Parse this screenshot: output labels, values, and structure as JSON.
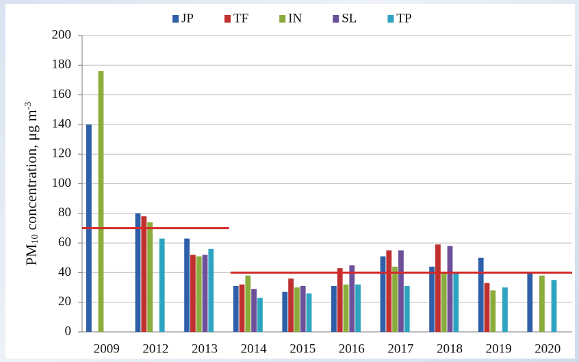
{
  "chart_data": {
    "type": "bar",
    "ylabel": [
      "PM",
      "10",
      "concentration, μg m",
      "-3"
    ],
    "categories": [
      "2009",
      "2012",
      "2013",
      "2014",
      "2015",
      "2016",
      "2017",
      "2018",
      "2019",
      "2020"
    ],
    "series": [
      {
        "name": "JP",
        "color": "#2f5fa8",
        "values": [
          140,
          80,
          63,
          31,
          27,
          31,
          51,
          44,
          50,
          40
        ]
      },
      {
        "name": "TF",
        "color": "#c0302f",
        "values": [
          null,
          78,
          52,
          32,
          36,
          43,
          55,
          59,
          33,
          null
        ]
      },
      {
        "name": "IN",
        "color": "#8aac3c",
        "values": [
          176,
          74,
          51,
          38,
          30,
          32,
          44,
          40,
          28,
          38
        ]
      },
      {
        "name": "SL",
        "color": "#6d4f9a",
        "values": [
          null,
          null,
          52,
          29,
          31,
          45,
          55,
          58,
          null,
          null
        ]
      },
      {
        "name": "TP",
        "color": "#2ea4c0",
        "values": [
          null,
          63,
          56,
          23,
          26,
          32,
          31,
          40,
          30,
          35
        ]
      }
    ],
    "reference_lines": [
      {
        "value": 70,
        "from": "2009",
        "to": "2013",
        "color": "#d42a2a"
      },
      {
        "value": 40,
        "from": "2014",
        "to": "2020",
        "color": "#d42a2a"
      }
    ],
    "ylim": [
      0,
      200
    ],
    "yticks": [
      0,
      20,
      40,
      60,
      80,
      100,
      120,
      140,
      160,
      180,
      200
    ],
    "grid": true
  }
}
